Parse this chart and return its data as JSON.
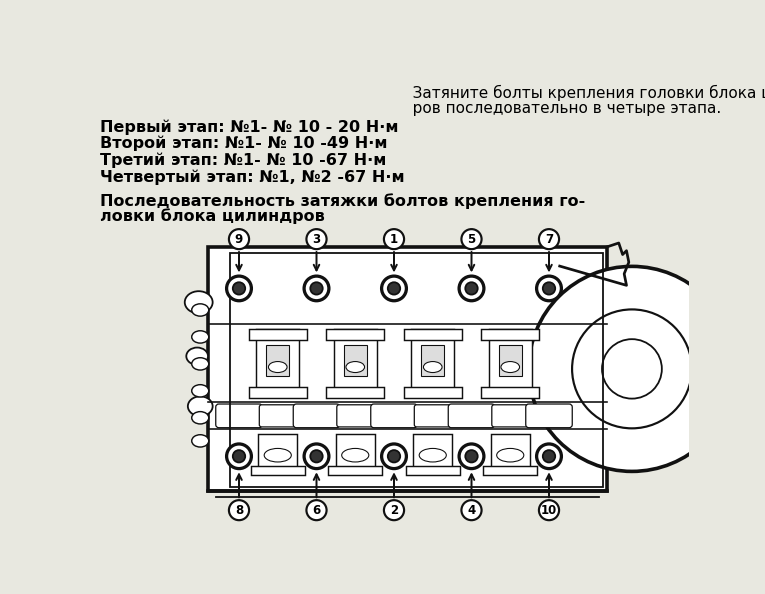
{
  "background_color": "#e8e8e0",
  "text_color": "#000000",
  "title_text1": "   Затяните болты крепления головки блока цилинд-",
  "title_text2": "   ров последовательно в четыре этапа.",
  "step1": "Первый этап: №1- № 10 - 20 Н·м",
  "step2": "Второй этап: №1- № 10 -49 Н·м",
  "step3": "Третий этап: №1- № 10 -67 Н·м",
  "step4": "Четвертый этап: №1, №2 -67 Н·м",
  "subtitle1": "Последовательность затяжки болтов крепления го-",
  "subtitle2": "ловки блока цилиндров",
  "top_bolt_labels": [
    "9",
    "3",
    "1",
    "5",
    "7"
  ],
  "bottom_bolt_labels": [
    "8",
    "6",
    "2",
    "4",
    "10"
  ],
  "lc": "#111111",
  "font_size_title": 11.0,
  "font_size_steps": 11.5,
  "font_size_subtitle": 11.5,
  "font_size_labels": 8.5
}
